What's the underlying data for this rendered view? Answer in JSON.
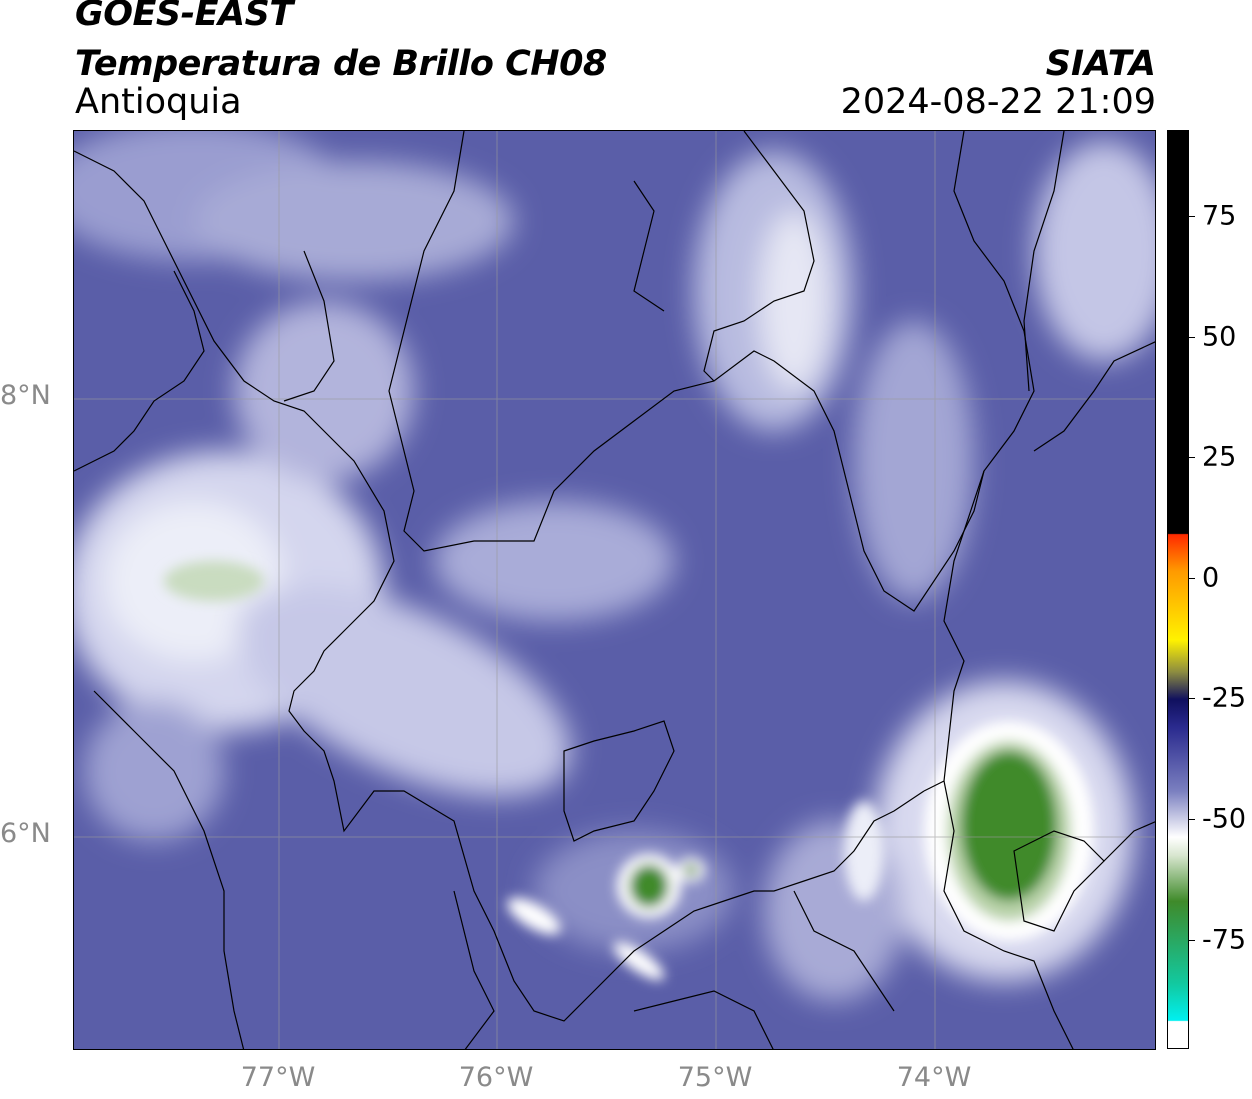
{
  "header": {
    "satellite": "GOES-EAST",
    "product": "Temperatura de Brillo CH08",
    "region": "Antioquia",
    "agency": "SIATA",
    "timestamp": "2024-08-22 21:09"
  },
  "map": {
    "lat_labels": [
      "8°N",
      "6°N"
    ],
    "lon_labels": [
      "77°W",
      "76°W",
      "75°W",
      "74°W"
    ],
    "gridlines": true,
    "colors": {
      "background_deep": "#4e52a0",
      "mid": "#8f93c8",
      "light": "#d6d8ee",
      "white": "#f6f6fb",
      "green": "#3f8a2a",
      "light_green": "#b8d2a8"
    }
  },
  "colorbar": {
    "tick_labels": [
      "75",
      "50",
      "25",
      "0",
      "-25",
      "-50",
      "-75"
    ],
    "colors": {
      "top_black": "#000000",
      "red": "#ff2a00",
      "orange": "#ff9a00",
      "yellow": "#fff200",
      "olive": "#8c8c40",
      "dark_navy": "#10105e",
      "navy": "#2a2a8e",
      "slate": "#7b80c0",
      "white": "#ffffff",
      "green": "#3f8a2a",
      "teal": "#12c9a0",
      "cyan": "#00f0f0"
    }
  }
}
